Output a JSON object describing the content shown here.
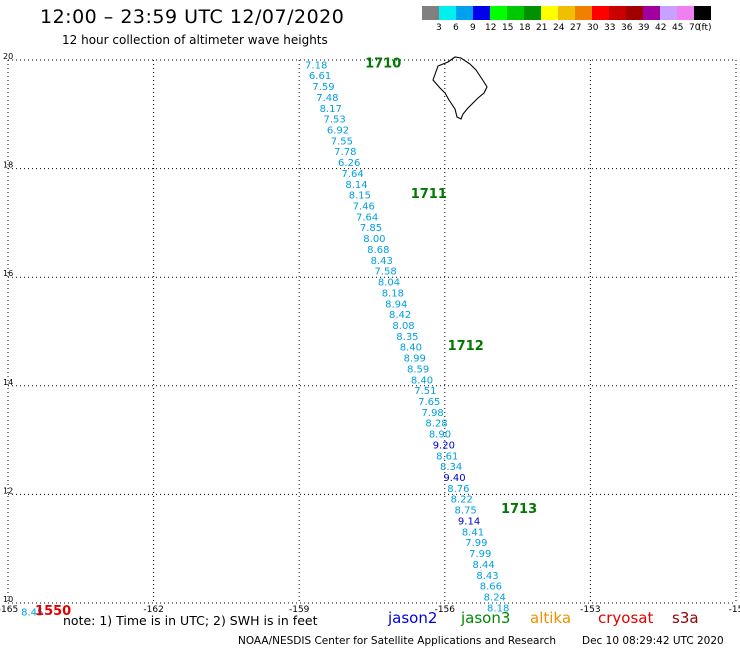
{
  "header": {
    "title": "12:00 – 23:59 UTC 12/07/2020",
    "subtitle": "12 hour collection of altimeter wave heights"
  },
  "scale": {
    "colors": [
      "#808080",
      "#00f0f0",
      "#00a0f0",
      "#0000f0",
      "#00ff00",
      "#00c800",
      "#009000",
      "#ffff00",
      "#f0c000",
      "#f08000",
      "#ff0000",
      "#c80000",
      "#a00000",
      "#a000a0",
      "#c8a0ff",
      "#f080f0",
      "#000000"
    ],
    "labels": [
      "3",
      "6",
      "9",
      "12",
      "15",
      "18",
      "21",
      "24",
      "27",
      "30",
      "33",
      "36",
      "39",
      "42",
      "45",
      "70"
    ],
    "unit": "(ft)"
  },
  "map": {
    "lon_range": [
      -165,
      -150
    ],
    "lat_range": [
      10,
      20
    ],
    "x_ticks": [
      "-165",
      "-162",
      "-159",
      "-156",
      "-153",
      "-15"
    ],
    "y_ticks": [
      "20",
      "18",
      "16",
      "14",
      "12",
      "10"
    ],
    "grid": "dotted",
    "land": "Hawaii (Big Island)"
  },
  "track": {
    "readings": [
      {
        "lon": -158.65,
        "lat": 19.92,
        "v": "7.18"
      },
      {
        "lon": -158.57,
        "lat": 19.72,
        "v": "6.61"
      },
      {
        "lon": -158.5,
        "lat": 19.52,
        "v": "7.59"
      },
      {
        "lon": -158.42,
        "lat": 19.32,
        "v": "7.48"
      },
      {
        "lon": -158.35,
        "lat": 19.12,
        "v": "8.17"
      },
      {
        "lon": -158.27,
        "lat": 18.92,
        "v": "7.53"
      },
      {
        "lon": -158.2,
        "lat": 18.72,
        "v": "6.92"
      },
      {
        "lon": -158.12,
        "lat": 18.52,
        "v": "7.55"
      },
      {
        "lon": -158.05,
        "lat": 18.32,
        "v": "7.78"
      },
      {
        "lon": -157.97,
        "lat": 18.12,
        "v": "6.26"
      },
      {
        "lon": -157.9,
        "lat": 17.92,
        "v": "7.64"
      },
      {
        "lon": -157.82,
        "lat": 17.72,
        "v": "8.14"
      },
      {
        "lon": -157.75,
        "lat": 17.52,
        "v": "8.15"
      },
      {
        "lon": -157.67,
        "lat": 17.32,
        "v": "7.46"
      },
      {
        "lon": -157.6,
        "lat": 17.12,
        "v": "7.64"
      },
      {
        "lon": -157.52,
        "lat": 16.92,
        "v": "7.85"
      },
      {
        "lon": -157.45,
        "lat": 16.72,
        "v": "8.00"
      },
      {
        "lon": -157.37,
        "lat": 16.52,
        "v": "8.68"
      },
      {
        "lon": -157.3,
        "lat": 16.32,
        "v": "8.43"
      },
      {
        "lon": -157.22,
        "lat": 16.12,
        "v": "7.58"
      },
      {
        "lon": -157.15,
        "lat": 15.92,
        "v": "8.04"
      },
      {
        "lon": -157.07,
        "lat": 15.72,
        "v": "8.18"
      },
      {
        "lon": -157.0,
        "lat": 15.52,
        "v": "8.94"
      },
      {
        "lon": -156.92,
        "lat": 15.32,
        "v": "8.42"
      },
      {
        "lon": -156.85,
        "lat": 15.12,
        "v": "8.08"
      },
      {
        "lon": -156.77,
        "lat": 14.92,
        "v": "8.35"
      },
      {
        "lon": -156.7,
        "lat": 14.72,
        "v": "8.40"
      },
      {
        "lon": -156.62,
        "lat": 14.52,
        "v": "8.99"
      },
      {
        "lon": -156.55,
        "lat": 14.32,
        "v": "8.59"
      },
      {
        "lon": -156.47,
        "lat": 14.12,
        "v": "8.40"
      },
      {
        "lon": -156.4,
        "lat": 13.92,
        "v": "7.51"
      },
      {
        "lon": -156.32,
        "lat": 13.72,
        "v": "7.65"
      },
      {
        "lon": -156.25,
        "lat": 13.52,
        "v": "7.98"
      },
      {
        "lon": -156.17,
        "lat": 13.32,
        "v": "8.28"
      },
      {
        "lon": -156.1,
        "lat": 13.12,
        "v": "8.90"
      },
      {
        "lon": -156.02,
        "lat": 12.92,
        "v": "9.20",
        "dark": true
      },
      {
        "lon": -155.95,
        "lat": 12.72,
        "v": "8.61"
      },
      {
        "lon": -155.87,
        "lat": 12.52,
        "v": "8.34"
      },
      {
        "lon": -155.8,
        "lat": 12.32,
        "v": "9.40",
        "dark": true
      },
      {
        "lon": -155.72,
        "lat": 12.12,
        "v": "8.76"
      },
      {
        "lon": -155.65,
        "lat": 11.92,
        "v": "8.22"
      },
      {
        "lon": -155.57,
        "lat": 11.72,
        "v": "8.75"
      },
      {
        "lon": -155.5,
        "lat": 11.52,
        "v": "9.14",
        "dark": true
      },
      {
        "lon": -155.42,
        "lat": 11.32,
        "v": "8.41"
      },
      {
        "lon": -155.35,
        "lat": 11.12,
        "v": "7.99"
      },
      {
        "lon": -155.27,
        "lat": 10.92,
        "v": "7.99"
      },
      {
        "lon": -155.2,
        "lat": 10.72,
        "v": "8.44"
      },
      {
        "lon": -155.12,
        "lat": 10.52,
        "v": "8.43"
      },
      {
        "lon": -155.05,
        "lat": 10.32,
        "v": "8.66"
      },
      {
        "lon": -154.97,
        "lat": 10.12,
        "v": "8.24"
      },
      {
        "lon": -154.9,
        "lat": 9.92,
        "v": "8.18"
      },
      {
        "lon": -164.5,
        "lat": 9.84,
        "v": "8.45"
      }
    ],
    "time_labels": [
      {
        "lon": -157.27,
        "lat": 19.95,
        "t": "1710",
        "color": "#007800"
      },
      {
        "lon": -156.33,
        "lat": 17.55,
        "t": "1711",
        "color": "#007800"
      },
      {
        "lon": -155.57,
        "lat": 14.75,
        "t": "1712",
        "color": "#007800"
      },
      {
        "lon": -154.47,
        "lat": 11.75,
        "t": "1713",
        "color": "#007800"
      },
      {
        "lon": -164.07,
        "lat": 9.87,
        "t": "1550",
        "color": "#e00000"
      }
    ]
  },
  "footer": {
    "note": "note: 1) Time is in UTC; 2) SWH is in feet",
    "satellites": [
      {
        "name": "jason2",
        "color": "#0000e0"
      },
      {
        "name": "jason3",
        "color": "#008800"
      },
      {
        "name": "altika",
        "color": "#f09000"
      },
      {
        "name": "cryosat",
        "color": "#e00000"
      },
      {
        "name": "s3a",
        "color": "#900000"
      }
    ],
    "credit": "NOAA/NESDIS Center for Satellite Applications and Research",
    "timestamp": "Dec 10 08:29:42 UTC 2020"
  }
}
